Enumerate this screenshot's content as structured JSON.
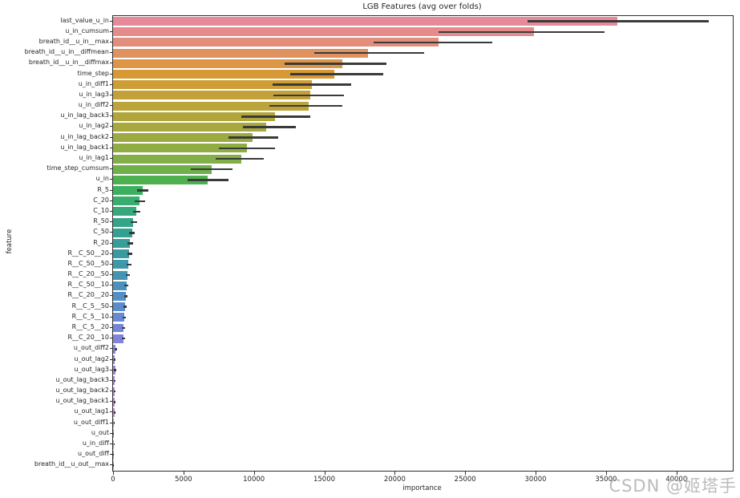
{
  "figure": {
    "background": "#ffffff",
    "spine_color": "#2e2e2e",
    "text_color": "#262626",
    "errorbar_color": "#3a3a3a",
    "watermark": "CSDN @姬塔手"
  },
  "chart_data": {
    "type": "bar",
    "orientation": "horizontal",
    "title": "LGB Features (avg over folds)",
    "xlabel": "importance",
    "ylabel": "feature",
    "xlim": [
      0,
      44000
    ],
    "xticks": [
      0,
      5000,
      10000,
      15000,
      20000,
      25000,
      30000,
      35000,
      40000
    ],
    "grid": false,
    "legend": "none",
    "features": [
      {
        "label": "last_value_u_in",
        "value": 35800,
        "err": [
          29400,
          42300
        ],
        "color": "#e68a9b"
      },
      {
        "label": "u_in_cumsum",
        "value": 29900,
        "err": [
          23100,
          34900
        ],
        "color": "#e58b8b"
      },
      {
        "label": "breath_id__u_in__max",
        "value": 23100,
        "err": [
          18500,
          26900
        ],
        "color": "#e38d7c"
      },
      {
        "label": "breath_id__u_in__diffmean",
        "value": 18100,
        "err": [
          14300,
          22100
        ],
        "color": "#e09160"
      },
      {
        "label": "breath_id__u_in__diffmax",
        "value": 16300,
        "err": [
          12200,
          19400
        ],
        "color": "#dd9546"
      },
      {
        "label": "time_step",
        "value": 15700,
        "err": [
          12600,
          19200
        ],
        "color": "#d69936"
      },
      {
        "label": "u_in_diff1",
        "value": 14100,
        "err": [
          11300,
          16900
        ],
        "color": "#cd9d36"
      },
      {
        "label": "u_in_lag3",
        "value": 14000,
        "err": [
          11400,
          16400
        ],
        "color": "#c4a138"
      },
      {
        "label": "u_in_diff2",
        "value": 13900,
        "err": [
          11100,
          16300
        ],
        "color": "#bba43a"
      },
      {
        "label": "u_in_lag_back3",
        "value": 11500,
        "err": [
          9100,
          14000
        ],
        "color": "#b1a63c"
      },
      {
        "label": "u_in_lag2",
        "value": 10900,
        "err": [
          9200,
          13000
        ],
        "color": "#a7a83e"
      },
      {
        "label": "u_in_lag_back2",
        "value": 9900,
        "err": [
          8200,
          11700
        ],
        "color": "#9caa41"
      },
      {
        "label": "u_in_lag_back1",
        "value": 9500,
        "err": [
          7500,
          11500
        ],
        "color": "#90ad44"
      },
      {
        "label": "u_in_lag1",
        "value": 9100,
        "err": [
          7300,
          10700
        ],
        "color": "#82af48"
      },
      {
        "label": "time_step_cumsum",
        "value": 7000,
        "err": [
          5500,
          8500
        ],
        "color": "#6fb04b"
      },
      {
        "label": "u_in",
        "value": 6700,
        "err": [
          5300,
          8200
        ],
        "color": "#4fb050"
      },
      {
        "label": "R_5",
        "value": 2100,
        "err": [
          1700,
          2500
        ],
        "color": "#3cb05f"
      },
      {
        "label": "C_20",
        "value": 1900,
        "err": [
          1550,
          2250
        ],
        "color": "#39ac6f"
      },
      {
        "label": "C_10",
        "value": 1650,
        "err": [
          1400,
          1950
        ],
        "color": "#37a87c"
      },
      {
        "label": "R_50",
        "value": 1450,
        "err": [
          1250,
          1700
        ],
        "color": "#35a487"
      },
      {
        "label": "C_50",
        "value": 1350,
        "err": [
          1150,
          1550
        ],
        "color": "#34a190"
      },
      {
        "label": "R_20",
        "value": 1200,
        "err": [
          1050,
          1400
        ],
        "color": "#359e99"
      },
      {
        "label": "R__C_50__20",
        "value": 1150,
        "err": [
          1000,
          1350
        ],
        "color": "#389ba2"
      },
      {
        "label": "R__C_50__50",
        "value": 1100,
        "err": [
          950,
          1300
        ],
        "color": "#3d98ab"
      },
      {
        "label": "R__C_20__50",
        "value": 1050,
        "err": [
          900,
          1200
        ],
        "color": "#4395b3"
      },
      {
        "label": "R__C_50__10",
        "value": 950,
        "err": [
          820,
          1100
        ],
        "color": "#4a92bc"
      },
      {
        "label": "R__C_20__20",
        "value": 900,
        "err": [
          780,
          1050
        ],
        "color": "#538fc4"
      },
      {
        "label": "R__C_5__50",
        "value": 850,
        "err": [
          730,
          980
        ],
        "color": "#5d8ccc"
      },
      {
        "label": "R__C_5__10",
        "value": 800,
        "err": [
          690,
          930
        ],
        "color": "#6889d3"
      },
      {
        "label": "R__C_5__20",
        "value": 760,
        "err": [
          650,
          880
        ],
        "color": "#7386d9"
      },
      {
        "label": "R__C_20__10",
        "value": 720,
        "err": [
          610,
          840
        ],
        "color": "#7f84dd"
      },
      {
        "label": "u_out_diff2",
        "value": 190,
        "err": [
          120,
          280
        ],
        "color": "#8a84e0"
      },
      {
        "label": "u_out_lag2",
        "value": 130,
        "err": [
          70,
          200
        ],
        "color": "#9584e1"
      },
      {
        "label": "u_out_lag3",
        "value": 150,
        "err": [
          80,
          230
        ],
        "color": "#a085e0"
      },
      {
        "label": "u_out_lag_back3",
        "value": 90,
        "err": [
          40,
          150
        ],
        "color": "#aa86de"
      },
      {
        "label": "u_out_lag_back2",
        "value": 110,
        "err": [
          50,
          180
        ],
        "color": "#b487da"
      },
      {
        "label": "u_out_lag_back1",
        "value": 100,
        "err": [
          50,
          160
        ],
        "color": "#bd88d5"
      },
      {
        "label": "u_out_lag1",
        "value": 90,
        "err": [
          40,
          150
        ],
        "color": "#c689cf"
      },
      {
        "label": "u_out_diff1",
        "value": 80,
        "err": [
          40,
          130
        ],
        "color": "#cd8ac8"
      },
      {
        "label": "u_out",
        "value": 20,
        "err": [
          5,
          40
        ],
        "color": "#d48bc0"
      },
      {
        "label": "u_in_diff",
        "value": 70,
        "err": [
          30,
          120
        ],
        "color": "#da8cb8"
      },
      {
        "label": "u_out_diff",
        "value": 25,
        "err": [
          5,
          50
        ],
        "color": "#df8db0"
      },
      {
        "label": "breath_id__u_out__max",
        "value": 10,
        "err": [
          0,
          25
        ],
        "color": "#e38ea7"
      }
    ]
  }
}
